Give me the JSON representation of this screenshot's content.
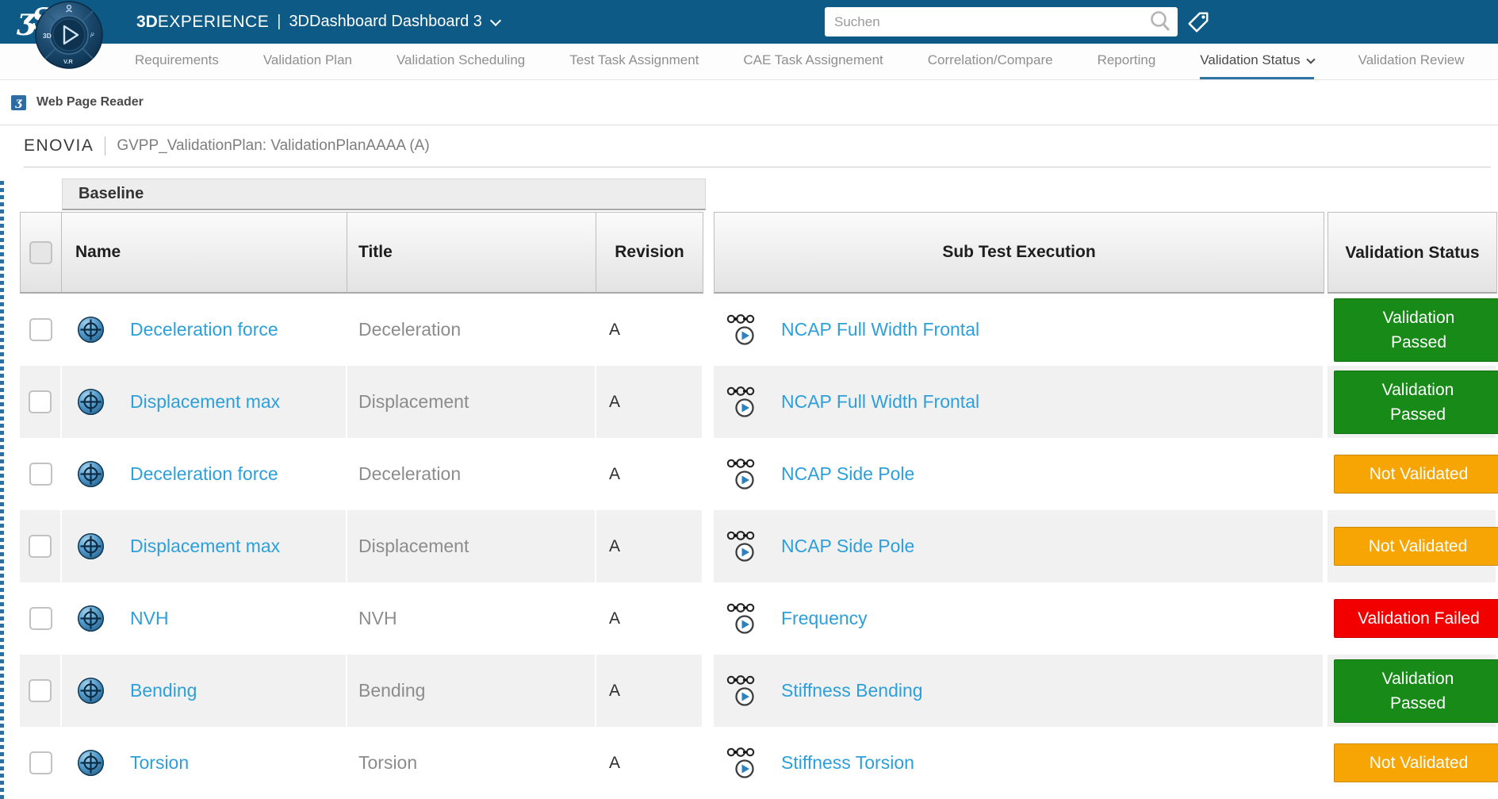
{
  "topbar": {
    "brand_bold": "3D",
    "brand_rest": "EXPERIENCE",
    "separator": "|",
    "app_title": "3DDashboard Dashboard 3",
    "search_placeholder": "Suchen"
  },
  "compass": {
    "label_left": "3D",
    "label_bottom": "V.R"
  },
  "nav": {
    "tabs": [
      {
        "label": "Requirements",
        "active": false,
        "caret": false
      },
      {
        "label": "Validation Plan",
        "active": false,
        "caret": false
      },
      {
        "label": "Validation Scheduling",
        "active": false,
        "caret": false
      },
      {
        "label": "Test Task Assignment",
        "active": false,
        "caret": false
      },
      {
        "label": "CAE Task Assignement",
        "active": false,
        "caret": false
      },
      {
        "label": "Correlation/Compare",
        "active": false,
        "caret": false
      },
      {
        "label": "Reporting",
        "active": false,
        "caret": false
      },
      {
        "label": "Validation Status",
        "active": true,
        "caret": true
      },
      {
        "label": "Validation Review",
        "active": false,
        "caret": false
      }
    ]
  },
  "widget_header": {
    "title": "Web Page Reader"
  },
  "breadcrumb": {
    "app": "ENOVIA",
    "context": "GVPP_ValidationPlan: ValidationPlanAAAA (A)"
  },
  "table": {
    "group_tab": "Baseline",
    "columns": {
      "name": "Name",
      "title": "Title",
      "revision": "Revision",
      "sub_test": "Sub Test Execution",
      "validation": "Validation Status"
    },
    "status_colors": {
      "passed": "#178A17",
      "not_validated": "#F6A504",
      "failed": "#F20000"
    },
    "rows": [
      {
        "name": "Deceleration force",
        "title": "Deceleration",
        "revision": "A",
        "sub_test": "NCAP Full Width Frontal",
        "status_lines": [
          "Validation",
          "Passed"
        ],
        "status_key": "passed"
      },
      {
        "name": "Displacement max",
        "title": "Displacement",
        "revision": "A",
        "sub_test": "NCAP Full Width Frontal",
        "status_lines": [
          "Validation",
          "Passed"
        ],
        "status_key": "passed"
      },
      {
        "name": "Deceleration force",
        "title": "Deceleration",
        "revision": "A",
        "sub_test": "NCAP Side Pole",
        "status_lines": [
          "Not Validated"
        ],
        "status_key": "not_validated"
      },
      {
        "name": "Displacement max",
        "title": "Displacement",
        "revision": "A",
        "sub_test": "NCAP Side Pole",
        "status_lines": [
          "Not Validated"
        ],
        "status_key": "not_validated"
      },
      {
        "name": "NVH",
        "title": "NVH",
        "revision": "A",
        "sub_test": "Frequency",
        "status_lines": [
          "Validation Failed"
        ],
        "status_key": "failed"
      },
      {
        "name": "Bending",
        "title": "Bending",
        "revision": "A",
        "sub_test": "Stiffness Bending",
        "status_lines": [
          "Validation",
          "Passed"
        ],
        "status_key": "passed"
      },
      {
        "name": "Torsion",
        "title": "Torsion",
        "revision": "A",
        "sub_test": "Stiffness Torsion",
        "status_lines": [
          "Not Validated"
        ],
        "status_key": "not_validated"
      }
    ]
  }
}
